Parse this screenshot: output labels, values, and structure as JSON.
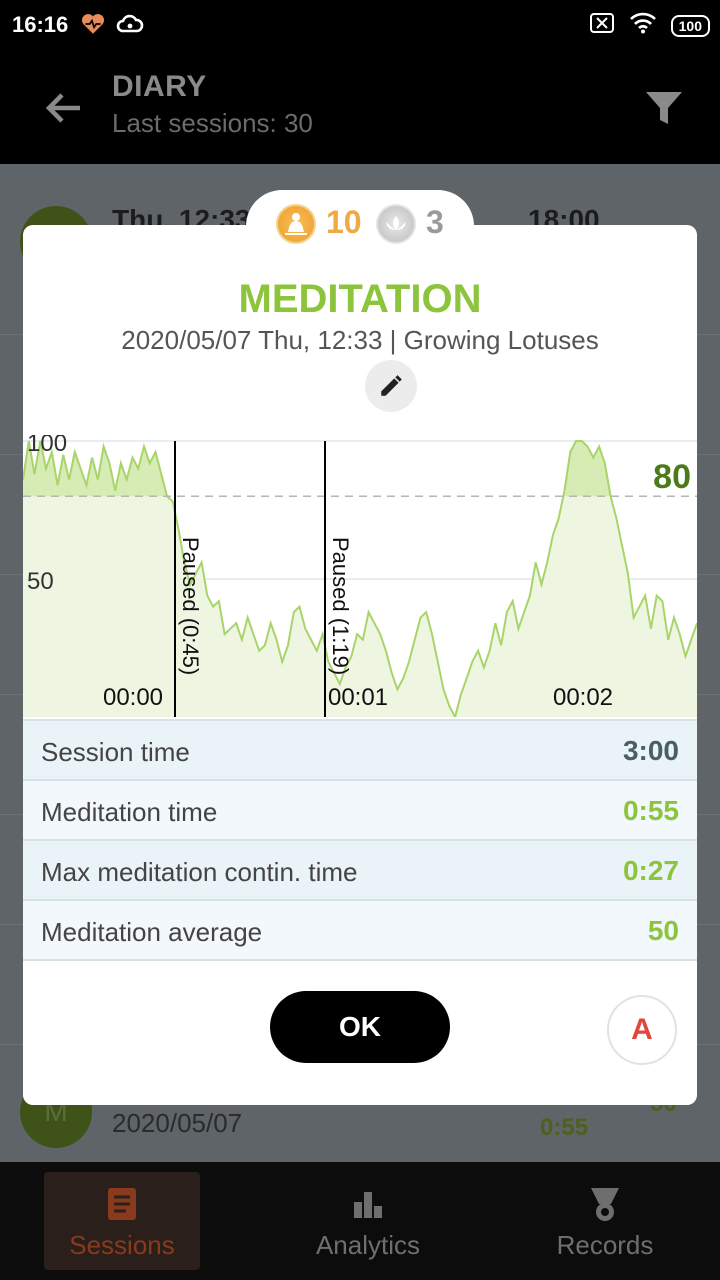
{
  "status_bar": {
    "time": "16:16",
    "battery": "100"
  },
  "app_bar": {
    "title": "DIARY",
    "subtitle": "Last sessions: 30"
  },
  "background_list": {
    "row1_date": "Thu, 12:33",
    "row1_time": "18:00",
    "last_avatar_letter": "M",
    "last_date": "2020/05/07",
    "last_value": "0:55",
    "last_score": "50"
  },
  "dialog": {
    "badges": {
      "gold_count": "10",
      "silver_count": "3"
    },
    "title": "MEDITATION",
    "subtitle": "2020/05/07 Thu, 12:33 | Growing Lotuses",
    "stats": [
      {
        "label": "Session time",
        "value": "3:00"
      },
      {
        "label": "Meditation time",
        "value": "0:55"
      },
      {
        "label": "Max meditation contin. time",
        "value": "0:27"
      },
      {
        "label": "Meditation average",
        "value": "50"
      }
    ],
    "ok_label": "OK",
    "a_label": "A"
  },
  "chart_data": {
    "type": "area",
    "y_ticks": [
      "100",
      "50"
    ],
    "ylim": [
      0,
      100
    ],
    "x_ticks": [
      "00:00",
      "00:01",
      "00:02"
    ],
    "threshold": {
      "value": 80,
      "label": "80"
    },
    "pauses": [
      "Paused (0:45)",
      "Paused (1:19)"
    ],
    "series": [
      {
        "values": [
          86,
          100,
          88,
          100,
          90,
          96,
          84,
          95,
          86,
          96,
          90,
          84,
          94,
          86,
          98,
          92,
          82,
          92,
          86,
          94,
          90,
          98,
          92,
          96,
          88,
          80,
          78,
          68,
          56,
          48,
          52,
          56,
          44,
          40,
          42,
          30,
          32,
          34,
          28,
          36,
          30,
          24,
          26,
          34,
          28,
          20,
          26,
          38,
          40,
          32,
          28,
          24,
          30,
          20,
          16,
          12,
          18,
          22,
          30,
          28,
          38,
          34,
          30,
          24,
          16,
          10,
          14,
          20,
          28,
          36,
          38,
          30,
          20,
          10,
          4,
          0,
          8,
          14,
          20,
          24,
          18,
          24,
          34,
          26,
          38,
          42,
          32,
          38,
          44,
          56,
          48,
          56,
          66,
          72,
          82,
          96,
          100,
          100,
          98,
          94,
          98,
          92,
          80,
          72,
          62,
          52,
          36,
          40,
          44,
          32,
          44,
          42,
          28,
          36,
          30,
          22,
          28,
          34
        ]
      }
    ]
  }
}
